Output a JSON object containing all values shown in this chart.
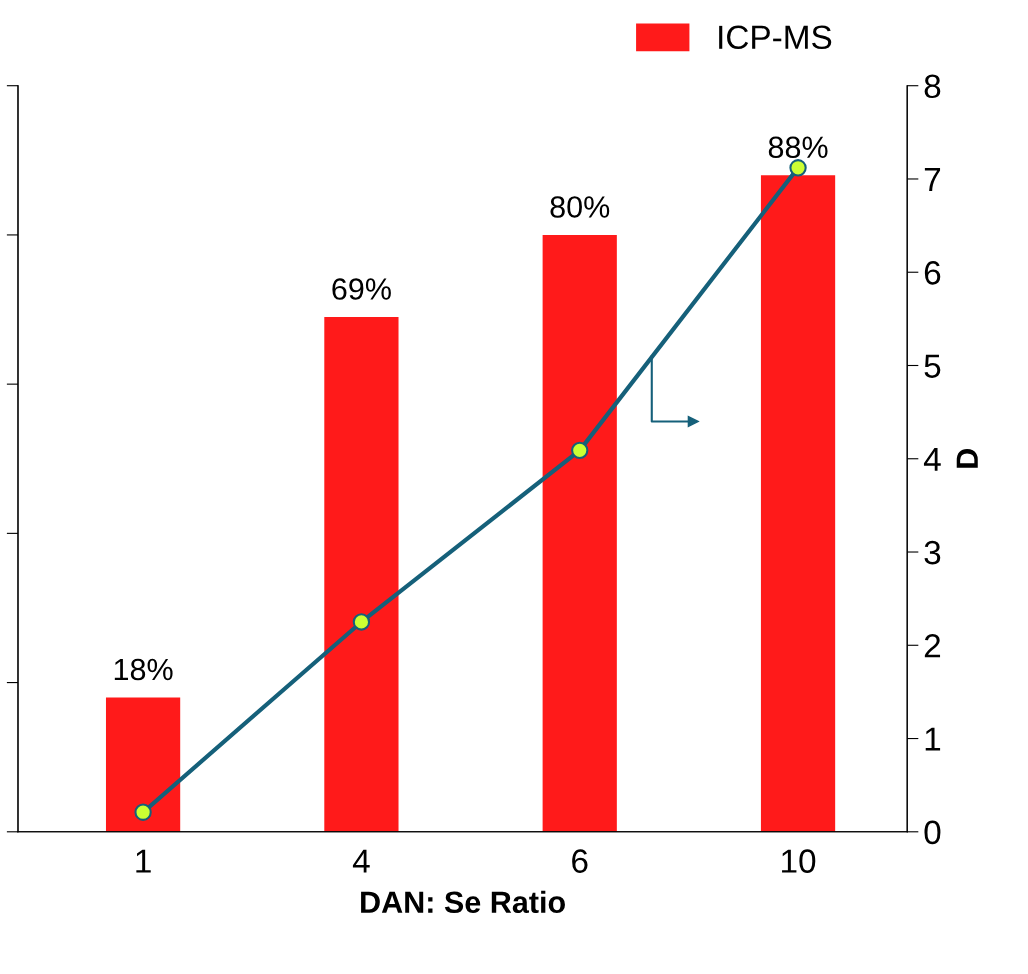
{
  "chart_data": {
    "type": "bar",
    "xlabel": "DAN: Se Ratio",
    "y2label": "D",
    "categories": [
      "1",
      "4",
      "6",
      "10"
    ],
    "series": [
      {
        "name": "ICP-MS",
        "color": "#ff1a1a",
        "values": [
          18,
          69,
          80,
          88
        ],
        "value_labels": [
          "18%",
          "69%",
          "80%",
          "88%"
        ]
      },
      {
        "type": "line",
        "axis": "y2",
        "color": "#15607a",
        "marker": "circle",
        "values": [
          0.21,
          2.25,
          4.09,
          7.12
        ]
      }
    ],
    "ylim": [
      0,
      100
    ],
    "yticks": [
      {
        "value": 0,
        "label": null
      },
      {
        "value": 20,
        "label": null
      },
      {
        "value": 40,
        "label": null
      },
      {
        "value": 60,
        "label": null
      },
      {
        "value": 80,
        "label": null
      },
      {
        "value": 100,
        "label": null
      }
    ],
    "y2lim": [
      0,
      8
    ],
    "y2ticks": [
      0,
      1,
      2,
      3,
      4,
      5,
      6,
      7,
      8
    ],
    "tick_labels": [
      "x",
      "y2"
    ],
    "grid": false,
    "legend": "top right"
  }
}
